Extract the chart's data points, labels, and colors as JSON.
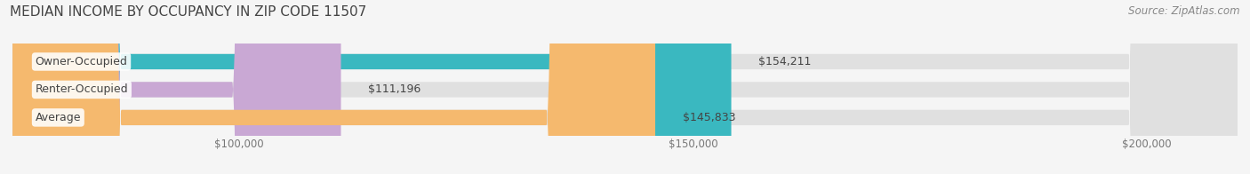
{
  "title": "MEDIAN INCOME BY OCCUPANCY IN ZIP CODE 11507",
  "source": "Source: ZipAtlas.com",
  "categories": [
    "Owner-Occupied",
    "Renter-Occupied",
    "Average"
  ],
  "values": [
    154211,
    111196,
    145833
  ],
  "bar_colors": [
    "#3ab8c0",
    "#c9a8d4",
    "#f5b96e"
  ],
  "value_labels": [
    "$154,211",
    "$111,196",
    "$145,833"
  ],
  "xlim": [
    75000,
    210000
  ],
  "xticks": [
    100000,
    150000,
    200000
  ],
  "xtick_labels": [
    "$100,000",
    "$150,000",
    "$200,000"
  ],
  "bar_height": 0.55,
  "background_color": "#f5f5f5",
  "bar_bg_color": "#e0e0e0",
  "title_fontsize": 11,
  "source_fontsize": 8.5,
  "label_fontsize": 9,
  "value_fontsize": 9,
  "tick_fontsize": 8.5
}
